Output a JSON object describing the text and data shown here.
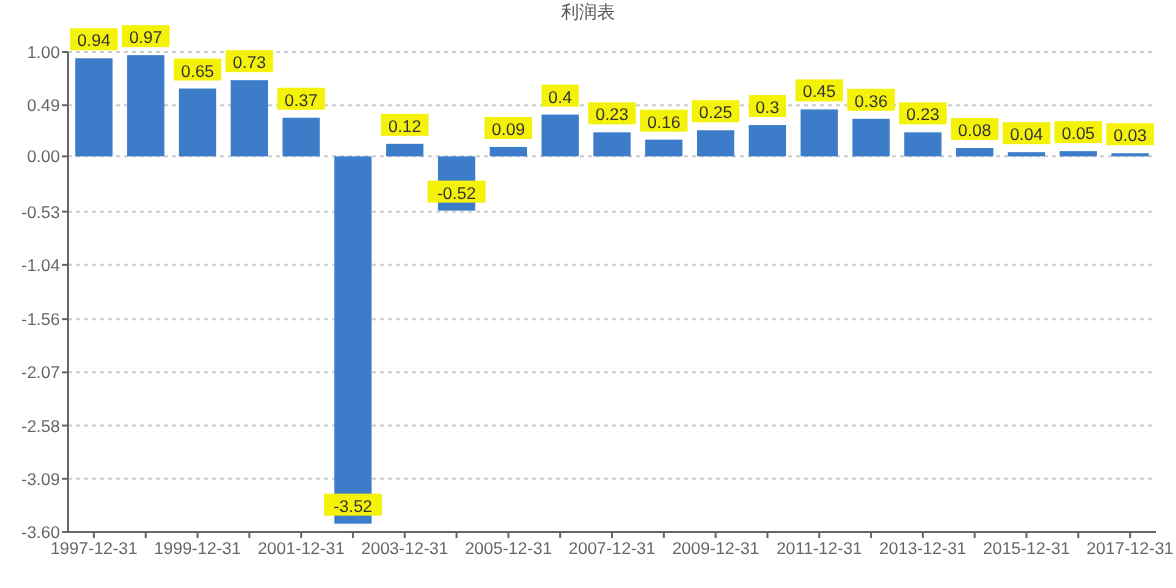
{
  "chart_data": {
    "type": "bar",
    "title": "利润表",
    "categories": [
      "1997-12-31",
      null,
      "1999-12-31",
      null,
      "2001-12-31",
      null,
      "2003-12-31",
      null,
      "2005-12-31",
      null,
      "2007-12-31",
      null,
      "2009-12-31",
      null,
      "2011-12-31",
      null,
      "2013-12-31",
      null,
      "2015-12-31",
      null,
      "2017-12-31"
    ],
    "values": [
      0.94,
      0.97,
      0.65,
      0.73,
      0.37,
      -3.52,
      0.12,
      -0.52,
      0.09,
      0.4,
      0.23,
      0.16,
      0.25,
      0.3,
      0.45,
      0.36,
      0.23,
      0.08,
      0.04,
      0.05,
      0.03
    ],
    "color": "#3d7cc9",
    "ylim": [
      -3.6,
      1.0
    ],
    "yticks": [
      {
        "value": 1.0,
        "label": "1.00"
      },
      {
        "value": 0.49,
        "label": "0.49"
      },
      {
        "value": 0.0,
        "label": "0.00"
      },
      {
        "value": -0.53,
        "label": "-0.53"
      },
      {
        "value": -1.04,
        "label": "-1.04"
      },
      {
        "value": -1.56,
        "label": "-1.56"
      },
      {
        "value": -2.07,
        "label": "-2.07"
      },
      {
        "value": -2.58,
        "label": "-2.58"
      },
      {
        "value": -3.09,
        "label": "-3.09"
      },
      {
        "value": -3.6,
        "label": "-3.60"
      }
    ],
    "grid": "y",
    "data_labels": true
  }
}
